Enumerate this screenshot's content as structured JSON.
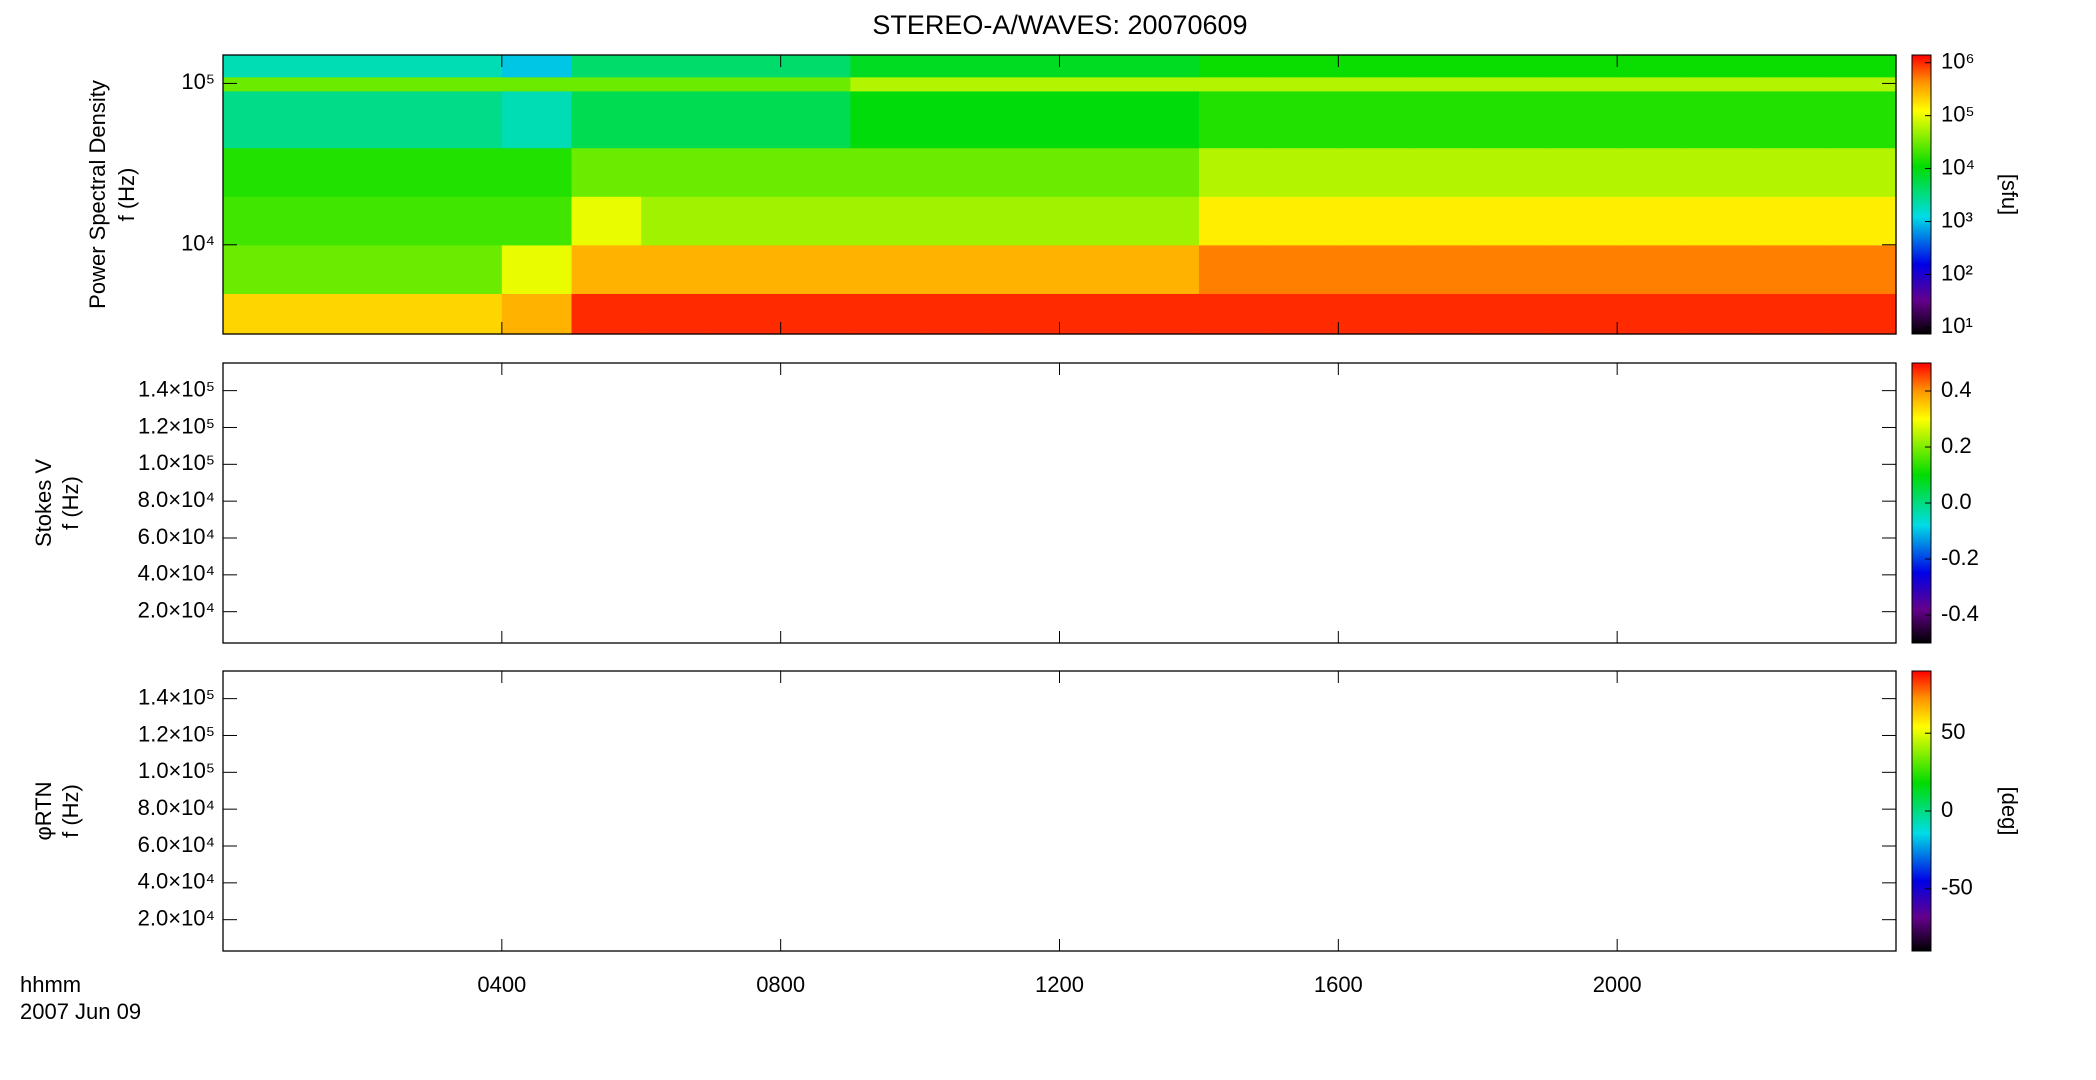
{
  "chart_data": [
    {
      "type": "heatmap",
      "title": "STEREO-A/WAVES: 20070609",
      "ylabel": [
        "Power Spectral Density",
        "f (Hz)"
      ],
      "ylog": true,
      "ylim": [
        2800,
        150000
      ],
      "yticks": [
        {
          "value": 10000,
          "label": "10⁴"
        },
        {
          "value": 100000,
          "label": "10⁵"
        }
      ],
      "xlim": [
        0,
        24
      ],
      "xticks": [
        {
          "value": 4,
          "label": "0400"
        },
        {
          "value": 8,
          "label": "0800"
        },
        {
          "value": 12,
          "label": "1200"
        },
        {
          "value": 16,
          "label": "1600"
        },
        {
          "value": 20,
          "label": "2000"
        }
      ],
      "x_edges": [
        0,
        1,
        2,
        3,
        4,
        5,
        6,
        7,
        8,
        9,
        10,
        11,
        12,
        13,
        14,
        15,
        16,
        17,
        18,
        19,
        20,
        21,
        22,
        23,
        24
      ],
      "y_edges": [
        2800,
        5000,
        10000,
        20000,
        40000,
        90000,
        110000,
        150000
      ],
      "z": [
        [
          200000,
          200000,
          200000,
          200000,
          300000,
          1000000,
          1000000,
          1000000,
          1000000,
          1000000,
          1000000,
          1000000,
          1000000,
          1000000,
          1000000,
          1000000,
          1000000,
          1000000,
          1000000,
          1000000,
          1000000,
          1000000,
          1000000,
          1000000
        ],
        [
          30000,
          30000,
          30000,
          30000,
          100000,
          300000,
          300000,
          300000,
          300000,
          300000,
          300000,
          300000,
          300000,
          300000,
          500000,
          500000,
          500000,
          500000,
          500000,
          500000,
          500000,
          500000,
          500000,
          500000
        ],
        [
          20000,
          20000,
          20000,
          20000,
          20000,
          100000,
          50000,
          50000,
          50000,
          50000,
          50000,
          50000,
          50000,
          50000,
          150000,
          150000,
          150000,
          150000,
          150000,
          150000,
          150000,
          150000,
          150000,
          150000
        ],
        [
          15000,
          15000,
          15000,
          15000,
          15000,
          30000,
          30000,
          30000,
          30000,
          30000,
          30000,
          30000,
          30000,
          30000,
          60000,
          60000,
          60000,
          60000,
          60000,
          60000,
          60000,
          60000,
          60000,
          60000
        ],
        [
          3000,
          3000,
          3000,
          3000,
          2000,
          5000,
          5000,
          5000,
          5000,
          10000,
          10000,
          10000,
          10000,
          10000,
          15000,
          15000,
          15000,
          15000,
          15000,
          15000,
          15000,
          15000,
          15000,
          15000
        ],
        [
          30000,
          30000,
          30000,
          30000,
          30000,
          30000,
          30000,
          30000,
          30000,
          60000,
          60000,
          60000,
          60000,
          60000,
          60000,
          60000,
          60000,
          60000,
          60000,
          60000,
          60000,
          60000,
          60000,
          60000
        ],
        [
          2000,
          2000,
          2000,
          2000,
          1000,
          4000,
          4000,
          4000,
          4000,
          8000,
          8000,
          8000,
          8000,
          8000,
          12000,
          12000,
          12000,
          12000,
          12000,
          12000,
          12000,
          12000,
          12000,
          12000
        ]
      ],
      "colormap": "rainbow",
      "zlog": true,
      "zlim": [
        7.5,
        1400000
      ],
      "zlabel": "[sfu]",
      "zticks": [
        {
          "value": 10,
          "label": "10¹"
        },
        {
          "value": 100,
          "label": "10²"
        },
        {
          "value": 1000,
          "label": "10³"
        },
        {
          "value": 10000,
          "label": "10⁴"
        },
        {
          "value": 100000,
          "label": "10⁵"
        },
        {
          "value": 1000000,
          "label": "10⁶"
        }
      ]
    },
    {
      "type": "heatmap",
      "ylabel": [
        "Stokes V",
        "f (Hz)"
      ],
      "ylog": false,
      "ylim": [
        3000,
        155000
      ],
      "yticks": [
        {
          "value": 20000,
          "label": "2.0×10⁴"
        },
        {
          "value": 40000,
          "label": "4.0×10⁴"
        },
        {
          "value": 60000,
          "label": "6.0×10⁴"
        },
        {
          "value": 80000,
          "label": "8.0×10⁴"
        },
        {
          "value": 100000,
          "label": "1.0×10⁵"
        },
        {
          "value": 120000,
          "label": "1.2×10⁵"
        },
        {
          "value": 140000,
          "label": "1.4×10⁵"
        }
      ],
      "xlim": [
        0,
        24
      ],
      "xticks": [
        {
          "value": 4,
          "label": "0400"
        },
        {
          "value": 8,
          "label": "0800"
        },
        {
          "value": 12,
          "label": "1200"
        },
        {
          "value": 16,
          "label": "1600"
        },
        {
          "value": 20,
          "label": "2000"
        }
      ],
      "colormap": "rainbow",
      "zlog": false,
      "zlim": [
        -0.5,
        0.5
      ],
      "zticks": [
        -0.4,
        -0.2,
        {
          "value": 0,
          "label": "0.0"
        },
        0.2,
        0.4
      ]
    },
    {
      "type": "heatmap",
      "ylabel": [
        "φRTN",
        "f (Hz)"
      ],
      "ylog": false,
      "ylim": [
        3000,
        155000
      ],
      "yticks": [
        {
          "value": 20000,
          "label": "2.0×10⁴"
        },
        {
          "value": 40000,
          "label": "4.0×10⁴"
        },
        {
          "value": 60000,
          "label": "6.0×10⁴"
        },
        {
          "value": 80000,
          "label": "8.0×10⁴"
        },
        {
          "value": 100000,
          "label": "1.0×10⁵"
        },
        {
          "value": 120000,
          "label": "1.2×10⁵"
        },
        {
          "value": 140000,
          "label": "1.4×10⁵"
        }
      ],
      "xlim": [
        0,
        24
      ],
      "xticks": [
        {
          "value": 4,
          "label": "0400"
        },
        {
          "value": 8,
          "label": "0800"
        },
        {
          "value": 12,
          "label": "1200"
        },
        {
          "value": 16,
          "label": "1600"
        },
        {
          "value": 20,
          "label": "2000"
        }
      ],
      "xlabel": "hhmm",
      "date": "2007 Jun 09",
      "colormap": "rainbow",
      "zlog": false,
      "zlim": [
        -90,
        90
      ],
      "zlabel": "[deg]",
      "zticks": [
        -50,
        0,
        50
      ]
    }
  ]
}
